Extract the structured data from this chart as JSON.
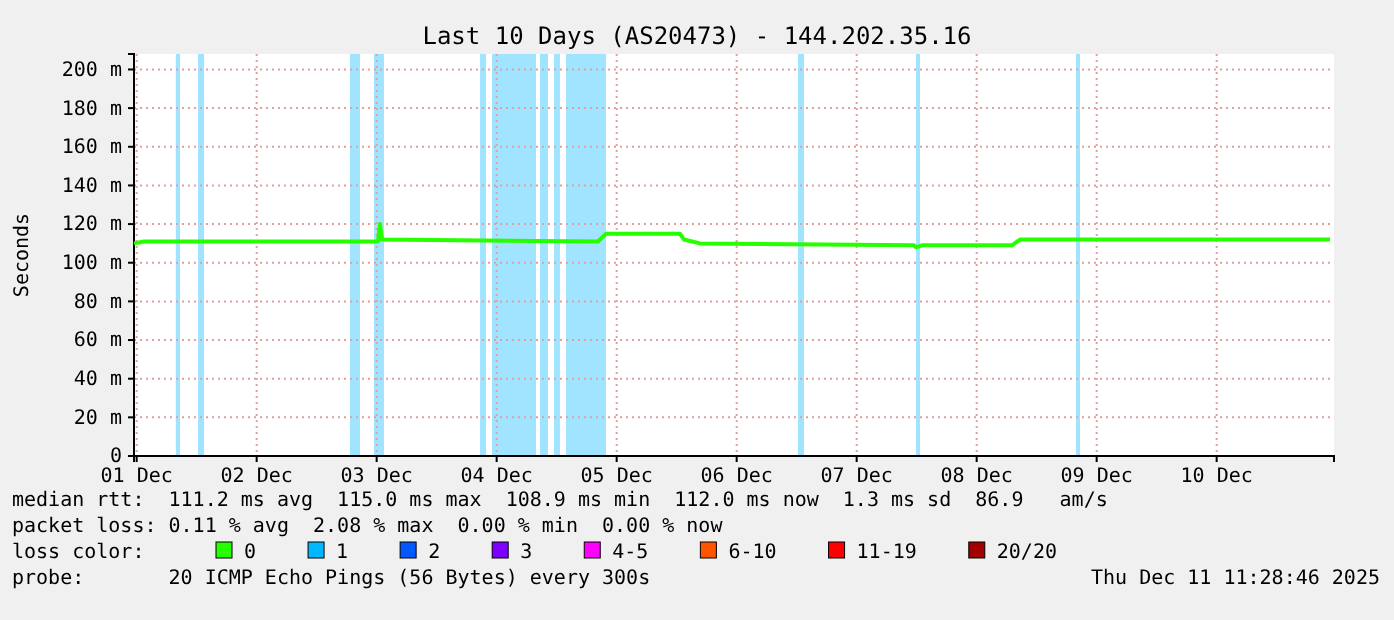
{
  "chart_data": {
    "type": "line",
    "title": "Last 10 Days (AS20473) - 144.202.35.16",
    "ylabel": "Seconds",
    "x": [
      "2025-12-01T11:28",
      "2025-12-01T13:28",
      "2025-12-03T12:16",
      "2025-12-03T12:40",
      "2025-12-03T13:04",
      "2025-12-05T08:16",
      "2025-12-05T09:52",
      "2025-12-06T00:40",
      "2025-12-06T01:28",
      "2025-12-06T04:40",
      "2025-12-07T23:28",
      "2025-12-07T23:52",
      "2025-12-08T01:04",
      "2025-12-08T19:04",
      "2025-12-08T20:40",
      "2025-12-11T10:40"
    ],
    "series": [
      {
        "name": "0",
        "color": "#26ff00",
        "values": [
          110,
          111,
          111,
          120,
          112,
          111,
          115,
          115,
          112,
          110,
          109,
          108,
          109,
          109,
          112,
          112
        ]
      },
      {
        "name": "1",
        "color": "#00b8ff",
        "values": [
          null,
          null,
          null,
          null,
          null,
          null,
          null,
          null,
          null,
          null,
          null,
          null,
          null,
          null,
          null,
          null
        ]
      },
      {
        "name": "2",
        "color": "#0059ff",
        "values": [
          null,
          null,
          null,
          null,
          null,
          null,
          null,
          null,
          null,
          null,
          null,
          null,
          null,
          null,
          null,
          null
        ]
      },
      {
        "name": "3",
        "color": "#7e00ff",
        "values": [
          null,
          null,
          null,
          null,
          null,
          null,
          null,
          null,
          null,
          null,
          null,
          null,
          null,
          null,
          null,
          null
        ]
      },
      {
        "name": "4-5",
        "color": "#ff00ff",
        "values": [
          null,
          null,
          null,
          null,
          null,
          null,
          null,
          null,
          null,
          null,
          null,
          null,
          null,
          null,
          null,
          null
        ]
      },
      {
        "name": "6-10",
        "color": "#ff5500",
        "values": [
          null,
          null,
          null,
          null,
          null,
          null,
          null,
          null,
          null,
          null,
          null,
          null,
          null,
          null,
          null,
          null
        ]
      },
      {
        "name": "11-19",
        "color": "#ff0000",
        "values": [
          null,
          null,
          null,
          null,
          null,
          null,
          null,
          null,
          null,
          null,
          null,
          null,
          null,
          null,
          null,
          null
        ]
      },
      {
        "name": "20/20",
        "color": "#a10000",
        "values": [
          null,
          null,
          null,
          null,
          null,
          null,
          null,
          null,
          null,
          null,
          null,
          null,
          null,
          null,
          null,
          null
        ]
      }
    ],
    "legend": "bottom",
    "legend_title": "loss color:",
    "xlim": [
      "2025-12-01T11:28",
      "2025-12-11T11:28"
    ],
    "xticks": [
      {
        "value": "2025-12-01T12:00",
        "label": "01 Dec"
      },
      {
        "value": "2025-12-02T12:00",
        "label": "02 Dec"
      },
      {
        "value": "2025-12-03T12:00",
        "label": "03 Dec"
      },
      {
        "value": "2025-12-04T12:00",
        "label": "04 Dec"
      },
      {
        "value": "2025-12-05T12:00",
        "label": "05 Dec"
      },
      {
        "value": "2025-12-06T12:00",
        "label": "06 Dec"
      },
      {
        "value": "2025-12-07T12:00",
        "label": "07 Dec"
      },
      {
        "value": "2025-12-08T12:00",
        "label": "08 Dec"
      },
      {
        "value": "2025-12-09T12:00",
        "label": "09 Dec"
      },
      {
        "value": "2025-12-10T12:00",
        "label": "10 Dec"
      }
    ],
    "ylim": [
      0,
      208
    ],
    "yticks": [
      0,
      {
        "value": 20,
        "label": "20 m"
      },
      {
        "value": 40,
        "label": "40 m"
      },
      {
        "value": 60,
        "label": "60 m"
      },
      {
        "value": 80,
        "label": "80 m"
      },
      {
        "value": 100,
        "label": "100 m"
      },
      {
        "value": 120,
        "label": "120 m"
      },
      {
        "value": 140,
        "label": "140 m"
      },
      {
        "value": 160,
        "label": "160 m"
      },
      {
        "value": 180,
        "label": "180 m"
      },
      {
        "value": 200,
        "label": "200 m"
      }
    ],
    "grid": true,
    "bands": [
      {
        "axis": "x",
        "from": "2025-12-01T19:50",
        "to": "2025-12-01T20:40",
        "color": "#a0e4ff"
      },
      {
        "axis": "x",
        "from": "2025-12-02T00:16",
        "to": "2025-12-02T01:28",
        "color": "#a0e4ff"
      },
      {
        "axis": "x",
        "from": "2025-12-03T06:40",
        "to": "2025-12-03T08:40",
        "color": "#a0e4ff"
      },
      {
        "axis": "x",
        "from": "2025-12-03T11:28",
        "to": "2025-12-03T13:28",
        "color": "#a0e4ff"
      },
      {
        "axis": "x",
        "from": "2025-12-04T08:40",
        "to": "2025-12-04T09:52",
        "color": "#a0e4ff"
      },
      {
        "axis": "x",
        "from": "2025-12-04T11:04",
        "to": "2025-12-04T19:52",
        "color": "#a0e4ff"
      },
      {
        "axis": "x",
        "from": "2025-12-04T20:40",
        "to": "2025-12-04T22:16",
        "color": "#a0e4ff"
      },
      {
        "axis": "x",
        "from": "2025-12-04T23:28",
        "to": "2025-12-05T00:40",
        "color": "#a0e4ff"
      },
      {
        "axis": "x",
        "from": "2025-12-05T01:52",
        "to": "2025-12-05T09:52",
        "color": "#a0e4ff"
      },
      {
        "axis": "x",
        "from": "2025-12-07T00:16",
        "to": "2025-12-07T01:28",
        "color": "#a0e4ff"
      },
      {
        "axis": "x",
        "from": "2025-12-07T23:52",
        "to": "2025-12-08T00:40",
        "color": "#a0e4ff"
      },
      {
        "axis": "x",
        "from": "2025-12-09T07:52",
        "to": "2025-12-09T08:40",
        "color": "#a0e4ff"
      }
    ],
    "annotations": [
      "median rtt:  111.2 ms avg  115.0 ms max  108.9 ms min  112.0 ms now  1.3 ms sd  86.9   am/s",
      "packet loss: 0.11 % avg  2.08 % max  0.00 % min  0.00 % now",
      "probe:       20 ICMP Echo Pings (56 Bytes) every 300s",
      "Thu Dec 11 11:28:46 2025"
    ]
  }
}
